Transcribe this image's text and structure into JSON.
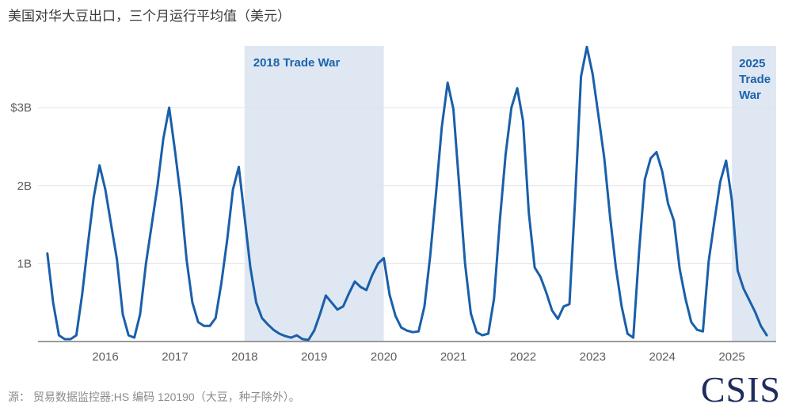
{
  "title": "美国对华大豆出口，三个月运行平均值（美元）",
  "source": "源： 贸易数据监控器;HS 编码 120190（大豆，种子除外）。",
  "logo": "CSIS",
  "colors": {
    "line": "#1a5fa9",
    "band": "#dfe7f2",
    "band_label": "#1b63ad",
    "grid": "#e4e4e4",
    "axis_line": "#9a9a9a",
    "title_text": "#3a3a3a",
    "tick_text": "#5c5c5c",
    "source_text": "#8b8b8b",
    "logo_navy": "#202c5e"
  },
  "chart_data": {
    "type": "line",
    "title": "美国对华大豆出口，三个月运行平均值（美元）",
    "xlabel": "",
    "ylabel": "",
    "grid": true,
    "legend": "none",
    "ylim": [
      0,
      3.8
    ],
    "xlim": [
      2015.17,
      2025.65
    ],
    "y_ticks": [
      {
        "value": 3,
        "label": "$3B"
      },
      {
        "value": 2,
        "label": "2B"
      },
      {
        "value": 1,
        "label": "1B"
      }
    ],
    "x_ticks": [
      "2016",
      "2017",
      "2018",
      "2019",
      "2020",
      "2021",
      "2022",
      "2023",
      "2024",
      "2025"
    ],
    "bands": [
      {
        "label": "2018 Trade War",
        "label_lines": [
          "2018 Trade War"
        ],
        "start_year": 2018,
        "end_year": 2020
      },
      {
        "label": "2025 Trade War",
        "label_lines": [
          "2025",
          "Trade",
          "War"
        ],
        "start_year": 2025,
        "end_year": 2025.66
      }
    ],
    "series": [
      {
        "points": [
          [
            "2015-03",
            1.13
          ],
          [
            "2015-04",
            0.5
          ],
          [
            "2015-05",
            0.08
          ],
          [
            "2015-06",
            0.03
          ],
          [
            "2015-07",
            0.03
          ],
          [
            "2015-08",
            0.08
          ],
          [
            "2015-09",
            0.6
          ],
          [
            "2015-10",
            1.25
          ],
          [
            "2015-11",
            1.85
          ],
          [
            "2015-12",
            2.26
          ],
          [
            "2016-01",
            1.95
          ],
          [
            "2016-02",
            1.5
          ],
          [
            "2016-03",
            1.05
          ],
          [
            "2016-04",
            0.35
          ],
          [
            "2016-05",
            0.08
          ],
          [
            "2016-06",
            0.05
          ],
          [
            "2016-07",
            0.35
          ],
          [
            "2016-08",
            1.0
          ],
          [
            "2016-09",
            1.5
          ],
          [
            "2016-10",
            2.0
          ],
          [
            "2016-11",
            2.6
          ],
          [
            "2016-12",
            3.0
          ],
          [
            "2017-01",
            2.45
          ],
          [
            "2017-02",
            1.85
          ],
          [
            "2017-03",
            1.05
          ],
          [
            "2017-04",
            0.5
          ],
          [
            "2017-05",
            0.25
          ],
          [
            "2017-06",
            0.2
          ],
          [
            "2017-07",
            0.2
          ],
          [
            "2017-08",
            0.3
          ],
          [
            "2017-09",
            0.75
          ],
          [
            "2017-10",
            1.3
          ],
          [
            "2017-11",
            1.95
          ],
          [
            "2017-12",
            2.24
          ],
          [
            "2018-01",
            1.6
          ],
          [
            "2018-02",
            0.95
          ],
          [
            "2018-03",
            0.5
          ],
          [
            "2018-04",
            0.3
          ],
          [
            "2018-05",
            0.22
          ],
          [
            "2018-06",
            0.15
          ],
          [
            "2018-07",
            0.1
          ],
          [
            "2018-08",
            0.07
          ],
          [
            "2018-09",
            0.05
          ],
          [
            "2018-10",
            0.08
          ],
          [
            "2018-11",
            0.03
          ],
          [
            "2018-12",
            0.02
          ],
          [
            "2019-01",
            0.14
          ],
          [
            "2019-02",
            0.35
          ],
          [
            "2019-03",
            0.59
          ],
          [
            "2019-04",
            0.5
          ],
          [
            "2019-05",
            0.41
          ],
          [
            "2019-06",
            0.45
          ],
          [
            "2019-07",
            0.62
          ],
          [
            "2019-08",
            0.77
          ],
          [
            "2019-09",
            0.7
          ],
          [
            "2019-10",
            0.66
          ],
          [
            "2019-11",
            0.85
          ],
          [
            "2019-12",
            1.0
          ],
          [
            "2020-01",
            1.07
          ],
          [
            "2020-02",
            0.6
          ],
          [
            "2020-03",
            0.33
          ],
          [
            "2020-04",
            0.18
          ],
          [
            "2020-05",
            0.14
          ],
          [
            "2020-06",
            0.12
          ],
          [
            "2020-07",
            0.13
          ],
          [
            "2020-08",
            0.45
          ],
          [
            "2020-09",
            1.1
          ],
          [
            "2020-10",
            1.9
          ],
          [
            "2020-11",
            2.75
          ],
          [
            "2020-12",
            3.32
          ],
          [
            "2021-01",
            2.98
          ],
          [
            "2021-02",
            2.0
          ],
          [
            "2021-03",
            1.0
          ],
          [
            "2021-04",
            0.36
          ],
          [
            "2021-05",
            0.12
          ],
          [
            "2021-06",
            0.08
          ],
          [
            "2021-07",
            0.1
          ],
          [
            "2021-08",
            0.55
          ],
          [
            "2021-09",
            1.55
          ],
          [
            "2021-10",
            2.4
          ],
          [
            "2021-11",
            3.0
          ],
          [
            "2021-12",
            3.25
          ],
          [
            "2022-01",
            2.83
          ],
          [
            "2022-02",
            1.65
          ],
          [
            "2022-03",
            0.95
          ],
          [
            "2022-04",
            0.83
          ],
          [
            "2022-05",
            0.63
          ],
          [
            "2022-06",
            0.4
          ],
          [
            "2022-07",
            0.29
          ],
          [
            "2022-08",
            0.45
          ],
          [
            "2022-09",
            0.48
          ],
          [
            "2022-10",
            1.85
          ],
          [
            "2022-11",
            3.4
          ],
          [
            "2022-12",
            3.78
          ],
          [
            "2023-01",
            3.43
          ],
          [
            "2023-02",
            2.9
          ],
          [
            "2023-03",
            2.35
          ],
          [
            "2023-04",
            1.6
          ],
          [
            "2023-05",
            0.95
          ],
          [
            "2023-06",
            0.45
          ],
          [
            "2023-07",
            0.1
          ],
          [
            "2023-08",
            0.05
          ],
          [
            "2023-09",
            1.15
          ],
          [
            "2023-10",
            2.08
          ],
          [
            "2023-11",
            2.35
          ],
          [
            "2023-12",
            2.43
          ],
          [
            "2024-01",
            2.18
          ],
          [
            "2024-02",
            1.77
          ],
          [
            "2024-03",
            1.55
          ],
          [
            "2024-04",
            0.93
          ],
          [
            "2024-05",
            0.55
          ],
          [
            "2024-06",
            0.25
          ],
          [
            "2024-07",
            0.15
          ],
          [
            "2024-08",
            0.13
          ],
          [
            "2024-09",
            1.03
          ],
          [
            "2024-10",
            1.55
          ],
          [
            "2024-11",
            2.05
          ],
          [
            "2024-12",
            2.32
          ],
          [
            "2025-01",
            1.81
          ],
          [
            "2025-02",
            0.91
          ],
          [
            "2025-03",
            0.68
          ],
          [
            "2025-04",
            0.53
          ],
          [
            "2025-05",
            0.38
          ],
          [
            "2025-06",
            0.2
          ],
          [
            "2025-07",
            0.08
          ]
        ]
      }
    ]
  }
}
